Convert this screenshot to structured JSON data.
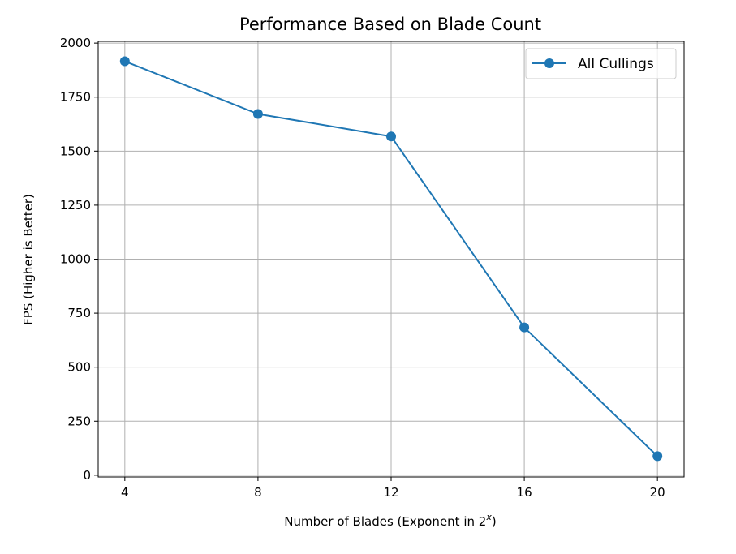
{
  "chart_data": {
    "type": "line",
    "title": "Performance Based on Blade Count",
    "xlabel_main": "Number of Blades (Exponent in 2",
    "xlabel_sup": "x",
    "xlabel_close": ")",
    "ylabel": "FPS (Higher is Better)",
    "x": [
      4,
      8,
      12,
      16,
      20
    ],
    "series": [
      {
        "name": "All Cullings",
        "values": [
          1916,
          1672,
          1568,
          684,
          88
        ],
        "color": "#1f77b4"
      }
    ],
    "xticks": [
      4,
      8,
      12,
      16,
      20
    ],
    "yticks": [
      0,
      250,
      500,
      750,
      1000,
      1250,
      1500,
      1750,
      2000
    ],
    "xlim": [
      3.2,
      20.8
    ],
    "ylim": [
      -8,
      2008
    ],
    "grid": true,
    "legend_position": "top-right"
  }
}
